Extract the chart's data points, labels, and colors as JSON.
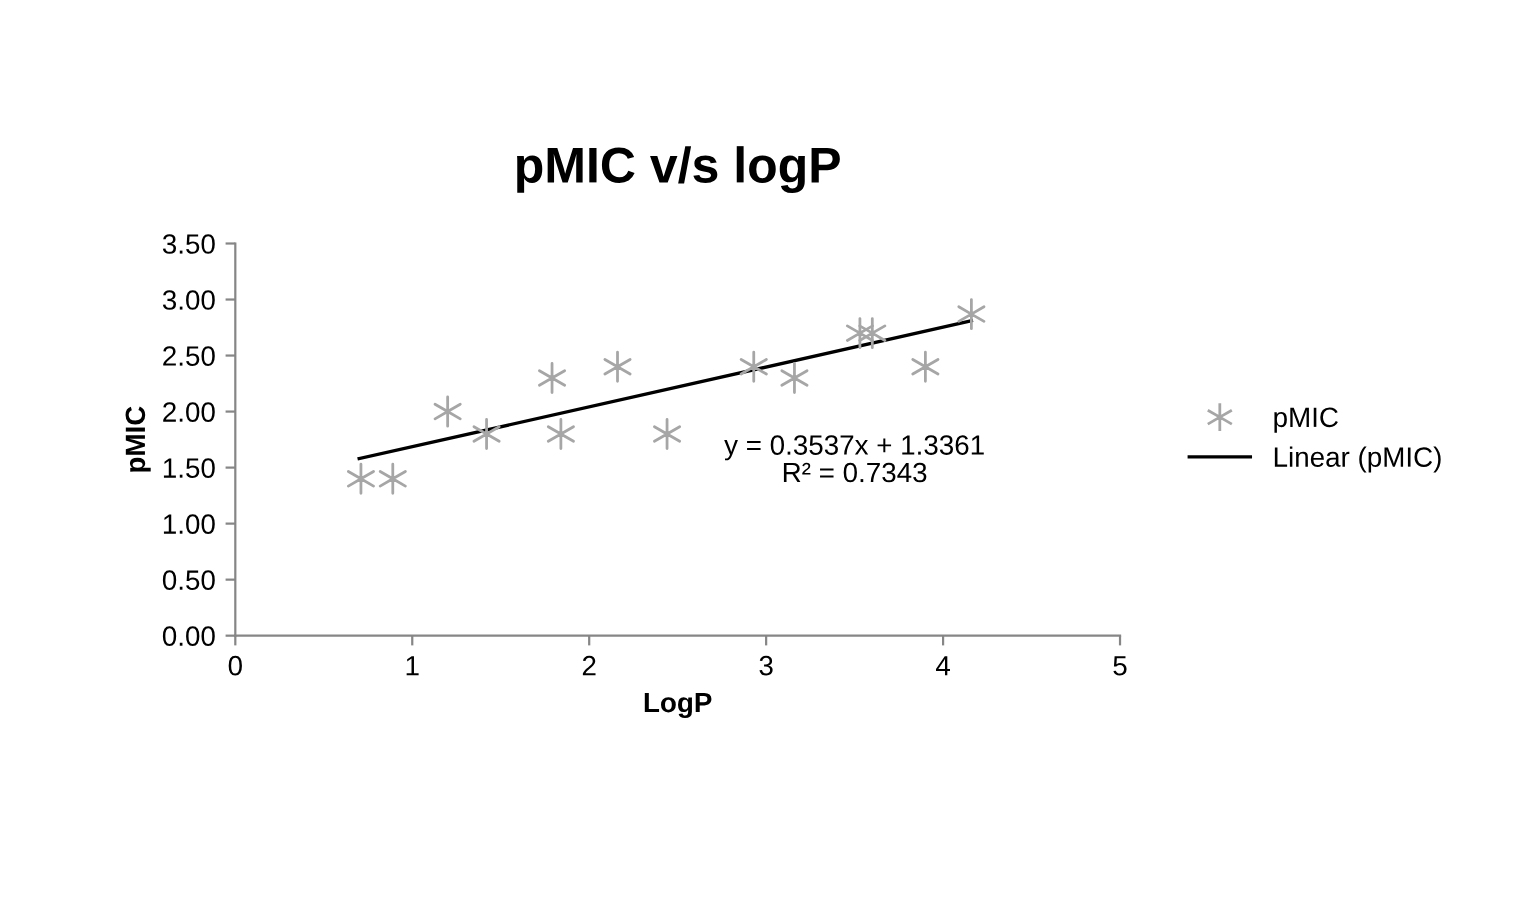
{
  "chart_data": {
    "type": "scatter",
    "title": "pMIC v/s logP",
    "xlabel": "LogP",
    "ylabel": "pMIC",
    "series": [
      {
        "name": "pMIC",
        "color": "#a6a6a6",
        "marker": "cross",
        "x": [
          0.71,
          0.89,
          1.2,
          1.42,
          1.79,
          1.84,
          2.16,
          2.44,
          2.93,
          3.16,
          3.53,
          3.6,
          3.9,
          4.16
        ],
        "values": [
          1.4,
          1.4,
          2.0,
          1.8,
          2.3,
          1.8,
          2.4,
          1.8,
          2.4,
          2.3,
          2.7,
          2.7,
          2.4,
          2.87
        ]
      },
      {
        "name": "Linear (pMIC)",
        "type": "line",
        "color": "#000000",
        "marker": "none",
        "line_style": "solid",
        "x": [
          0.7,
          4.16
        ],
        "values": [
          1.58,
          2.81
        ]
      }
    ],
    "annotations": [
      "y = 0.3537x + 1.3361",
      "R² = 0.7343"
    ],
    "xlim": [
      0,
      5
    ],
    "xticks": [
      0,
      1,
      2,
      3,
      4,
      5
    ],
    "ylim": [
      0,
      3.5
    ],
    "yticks": [
      {
        "value": 0,
        "label": "0.00"
      },
      {
        "value": 0.5,
        "label": "0.50"
      },
      {
        "value": 1,
        "label": "1.00"
      },
      {
        "value": 1.5,
        "label": "1.50"
      },
      {
        "value": 2,
        "label": "2.00"
      },
      {
        "value": 2.5,
        "label": "2.50"
      },
      {
        "value": 3,
        "label": "3.00"
      },
      {
        "value": 3.5,
        "label": "3.50"
      }
    ],
    "grid": false,
    "legend": "right"
  }
}
